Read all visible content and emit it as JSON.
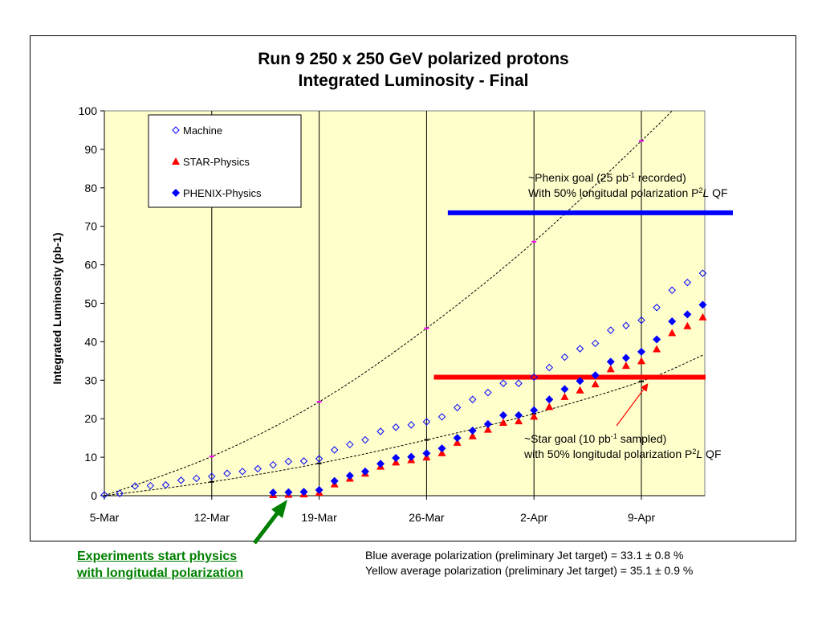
{
  "chart_data": {
    "type": "scatter",
    "title": [
      "Run 9 250 x 250 GeV polarized protons",
      "Integrated Luminosity - Final"
    ],
    "ylabel": "Integrated Luminosity (pb-1)",
    "xlabel": "",
    "ylim": [
      0,
      100
    ],
    "yticks": [
      0,
      10,
      20,
      30,
      40,
      50,
      60,
      70,
      80,
      90,
      100
    ],
    "xlim": [
      "2009-03-05",
      "2009-04-15"
    ],
    "xticks": [
      {
        "date": "2009-03-05",
        "label": "5-Mar"
      },
      {
        "date": "2009-03-12",
        "label": "12-Mar"
      },
      {
        "date": "2009-03-19",
        "label": "19-Mar"
      },
      {
        "date": "2009-03-26",
        "label": "26-Mar"
      },
      {
        "date": "2009-04-02",
        "label": "2-Apr"
      },
      {
        "date": "2009-04-09",
        "label": "9-Apr"
      }
    ],
    "grid": "vertical-major",
    "background": "#ffffcc",
    "legend": {
      "placement": "top-left"
    },
    "series": [
      {
        "name": "Machine",
        "marker": "diamond-open",
        "color": "#0000ff",
        "x": [
          "2009-03-05",
          "2009-03-06",
          "2009-03-07",
          "2009-03-08",
          "2009-03-09",
          "2009-03-10",
          "2009-03-11",
          "2009-03-12",
          "2009-03-13",
          "2009-03-14",
          "2009-03-15",
          "2009-03-16",
          "2009-03-17",
          "2009-03-18",
          "2009-03-19",
          "2009-03-20",
          "2009-03-21",
          "2009-03-22",
          "2009-03-23",
          "2009-03-24",
          "2009-03-25",
          "2009-03-26",
          "2009-03-27",
          "2009-03-28",
          "2009-03-29",
          "2009-03-30",
          "2009-03-31",
          "2009-04-01",
          "2009-04-02",
          "2009-04-03",
          "2009-04-04",
          "2009-04-05",
          "2009-04-06",
          "2009-04-07",
          "2009-04-08",
          "2009-04-09",
          "2009-04-10",
          "2009-04-11",
          "2009-04-12",
          "2009-04-13"
        ],
        "y": [
          0.2,
          0.6,
          2.5,
          2.6,
          2.8,
          4.0,
          4.5,
          5.0,
          5.8,
          6.3,
          7.0,
          8.0,
          8.9,
          9.0,
          9.6,
          11.9,
          13.3,
          14.5,
          16.7,
          17.8,
          18.4,
          19.2,
          20.5,
          22.9,
          25.0,
          26.8,
          29.2,
          29.2,
          30.8,
          33.3,
          36.0,
          38.2,
          39.6,
          43.0,
          44.2,
          45.6,
          48.9,
          53.4,
          55.4,
          57.8
        ]
      },
      {
        "name": "STAR-Physics",
        "marker": "triangle",
        "color": "#ff0000",
        "x": [
          "2009-03-16",
          "2009-03-17",
          "2009-03-18",
          "2009-03-19",
          "2009-03-20",
          "2009-03-21",
          "2009-03-22",
          "2009-03-23",
          "2009-03-24",
          "2009-03-25",
          "2009-03-26",
          "2009-03-27",
          "2009-03-28",
          "2009-03-29",
          "2009-03-30",
          "2009-03-31",
          "2009-04-01",
          "2009-04-02",
          "2009-04-03",
          "2009-04-04",
          "2009-04-05",
          "2009-04-06",
          "2009-04-07",
          "2009-04-08",
          "2009-04-09",
          "2009-04-10",
          "2009-04-11",
          "2009-04-12",
          "2009-04-13"
        ],
        "y": [
          0.2,
          0.3,
          0.4,
          0.8,
          3.0,
          4.5,
          5.8,
          7.6,
          8.7,
          9.3,
          10.0,
          11.1,
          13.8,
          15.5,
          17.2,
          19.0,
          19.4,
          20.6,
          23.1,
          25.7,
          27.4,
          29.0,
          32.9,
          33.8,
          35.0,
          38.1,
          42.3,
          44.1,
          46.4
        ]
      },
      {
        "name": "PHENIX-Physics",
        "marker": "diamond",
        "color": "#0000ff",
        "x": [
          "2009-03-16",
          "2009-03-17",
          "2009-03-18",
          "2009-03-19",
          "2009-03-20",
          "2009-03-21",
          "2009-03-22",
          "2009-03-23",
          "2009-03-24",
          "2009-03-25",
          "2009-03-26",
          "2009-03-27",
          "2009-03-28",
          "2009-03-29",
          "2009-03-30",
          "2009-03-31",
          "2009-04-01",
          "2009-04-02",
          "2009-04-03",
          "2009-04-04",
          "2009-04-05",
          "2009-04-06",
          "2009-04-07",
          "2009-04-08",
          "2009-04-09",
          "2009-04-10",
          "2009-04-11",
          "2009-04-12",
          "2009-04-13"
        ],
        "y": [
          0.8,
          0.9,
          1.0,
          1.5,
          3.8,
          5.2,
          6.3,
          8.3,
          9.8,
          10.1,
          11.0,
          12.3,
          15.0,
          16.9,
          18.6,
          20.9,
          20.9,
          22.2,
          25.0,
          27.7,
          29.8,
          31.3,
          34.8,
          35.8,
          37.4,
          40.6,
          45.3,
          47.1,
          49.6
        ]
      }
    ],
    "projections": [
      {
        "style": "dotted",
        "x": [
          "2009-03-05",
          "2009-03-12",
          "2009-03-19",
          "2009-03-26",
          "2009-04-02",
          "2009-04-09",
          "2009-04-11"
        ],
        "y": [
          0,
          10.2,
          24.4,
          43.5,
          66.0,
          92.2,
          100
        ]
      },
      {
        "style": "dotted",
        "x": [
          "2009-03-05",
          "2009-03-12",
          "2009-03-19",
          "2009-03-26",
          "2009-04-02",
          "2009-04-09",
          "2009-04-13"
        ],
        "y": [
          0,
          3.6,
          8.4,
          14.5,
          21.3,
          29.7,
          36.5
        ]
      }
    ],
    "goals": [
      {
        "y": 73.5,
        "x_from": "2009-03-30",
        "x_to": "2009-04-15",
        "color": "#0000ff"
      },
      {
        "y": 30.8,
        "x_from": "2009-03-27",
        "x_to": "2009-04-13",
        "color": "#ff0000"
      }
    ],
    "annotations": {
      "phenix_goal": {
        "line1_pre": "~Phenix goal (25 pb",
        "line1_sup": "-1",
        "line1_post": " recorded)",
        "line2_pre": "With 50% longitudal polarization P",
        "line2_sup": "2",
        "line2_italic": "L",
        "line2_post": " QF"
      },
      "star_goal": {
        "line1_pre": "~Star goal (10 pb",
        "line1_sup": "-1",
        "line1_post": " sampled)",
        "line2_pre": "with 50% longitudal polarization P",
        "line2_sup": "2",
        "line2_italic": "L",
        "line2_post": " QF"
      }
    }
  },
  "notes": {
    "experiments_line1": "Experiments start physics",
    "experiments_line2": "with longitudal polarization",
    "blue_pol": "Blue average polarization (preliminary Jet target) = 33.1 ± 0.8 %",
    "yellow_pol": "Yellow average polarization (preliminary Jet target)  = 35.1 ± 0.9 %"
  }
}
